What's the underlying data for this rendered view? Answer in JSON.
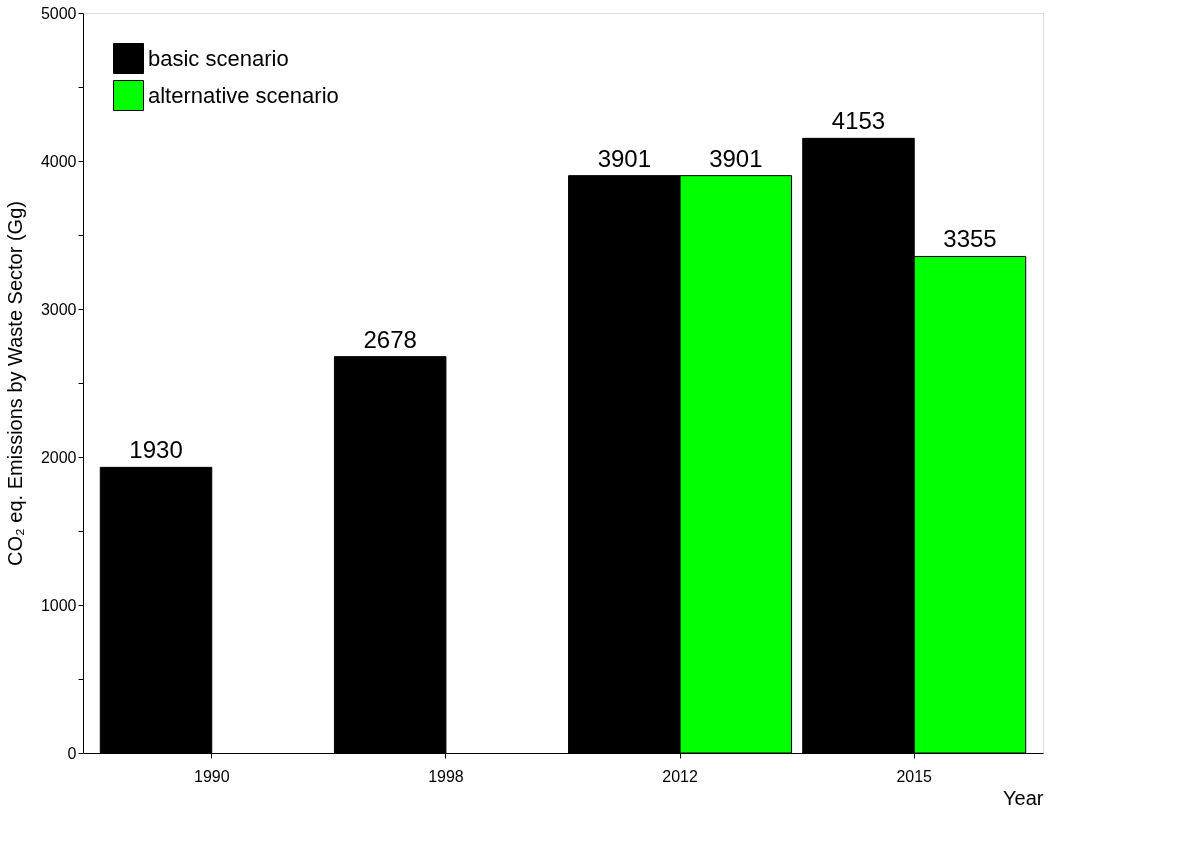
{
  "chart_data": {
    "type": "bar",
    "xlabel": "Year",
    "ylabel": "CO₂ eq. Emissions by Waste Sector (Gg)",
    "categories": [
      "1990",
      "1998",
      "2012",
      "2015"
    ],
    "series": [
      {
        "name": "basic scenario",
        "color": "#000000",
        "values": [
          1930,
          2678,
          3901,
          4153
        ]
      },
      {
        "name": "alternative scenario",
        "color": "#00ff00",
        "values": [
          null,
          null,
          3901,
          3355
        ]
      }
    ],
    "ylim": [
      0,
      5000
    ],
    "yticks": [
      0,
      {
        "value": 500,
        "label": null
      },
      1000,
      {
        "value": 1500,
        "label": null
      },
      2000,
      {
        "value": 2500,
        "label": null
      },
      3000,
      {
        "value": 3500,
        "label": null
      },
      4000,
      {
        "value": 4500,
        "label": null
      },
      5000
    ],
    "data_labels": true,
    "grid": false,
    "legend": "top left"
  }
}
